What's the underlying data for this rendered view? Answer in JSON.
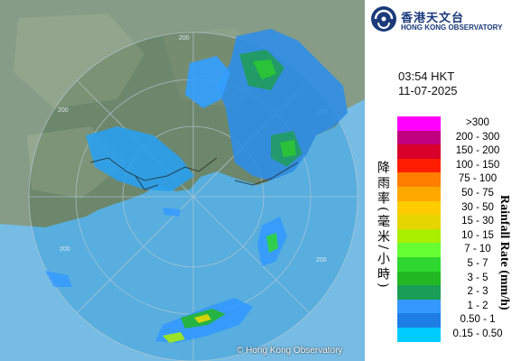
{
  "header": {
    "logo_cn": "香港天文台",
    "logo_en": "HONG KONG OBSERVATORY",
    "time": "03:54 HKT",
    "date": "11-07-2025"
  },
  "map": {
    "copyright": "© Hong Kong Observatory",
    "range_labels": [
      "200",
      "200",
      "200",
      "200",
      "200"
    ],
    "colors": {
      "sea": "#5fb4de",
      "land": "#6f8a6e",
      "ring": "#9ab"
    }
  },
  "legend": {
    "title_cn": "降雨率(毫米/小時)",
    "title_en": "Rainfall Rate (mm/h)",
    "items": [
      {
        "label": ">300",
        "color": "#ff00ff"
      },
      {
        "label": "200 - 300",
        "color": "#c0007e"
      },
      {
        "label": "150 - 200",
        "color": "#d8002a"
      },
      {
        "label": "100 - 150",
        "color": "#ff1e00"
      },
      {
        "label": "75 - 100",
        "color": "#ff7e00"
      },
      {
        "label": "50 - 75",
        "color": "#ffa800"
      },
      {
        "label": "30 - 50",
        "color": "#ffcc00"
      },
      {
        "label": "15 - 30",
        "color": "#e6d600"
      },
      {
        "label": "10 - 15",
        "color": "#aaee00"
      },
      {
        "label": "7 - 10",
        "color": "#66ff33"
      },
      {
        "label": "5 - 7",
        "color": "#2ed82e"
      },
      {
        "label": "3 - 5",
        "color": "#22b822"
      },
      {
        "label": "2 - 3",
        "color": "#1a9e55"
      },
      {
        "label": "1 - 2",
        "color": "#3399ff"
      },
      {
        "label": "0.50 - 1",
        "color": "#1e7ee6"
      },
      {
        "label": "0.15 - 0.50",
        "color": "#00ccff"
      }
    ]
  }
}
